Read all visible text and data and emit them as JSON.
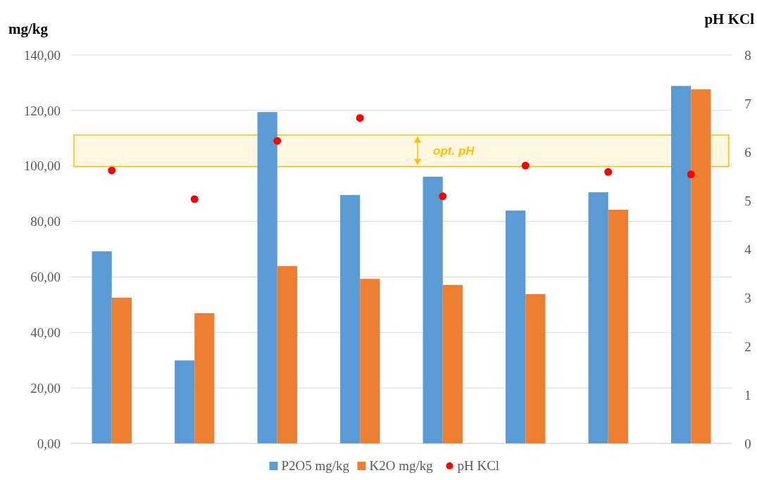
{
  "chart_data": {
    "type": "bar",
    "ylabel": "mg/kg",
    "y2label": "pH KCl",
    "categories": [
      null,
      null,
      null,
      null,
      null,
      null,
      null,
      null
    ],
    "series": [
      {
        "name": "P2O5 mg/kg",
        "color": "#5b9bd5",
        "values": [
          69.2,
          29.9,
          119.4,
          89.5,
          96.1,
          83.9,
          90.5,
          128.8
        ]
      },
      {
        "name": "K2O mg/kg",
        "color": "#ed7d31",
        "values": [
          52.5,
          46.9,
          63.9,
          59.3,
          57.1,
          53.8,
          84.2,
          127.6
        ]
      },
      {
        "name": "pH KCl",
        "type": "scatter",
        "axis": "y2",
        "color": "#ff0000",
        "marker": "circle",
        "values": [
          5.62,
          5.03,
          6.23,
          6.7,
          5.09,
          5.72,
          5.59,
          5.54
        ]
      }
    ],
    "ylim": [
      0,
      140
    ],
    "yticks": [
      {
        "value": 0,
        "label": "0,00"
      },
      {
        "value": 20,
        "label": "20,00"
      },
      {
        "value": 40,
        "label": "40,00"
      },
      {
        "value": 60,
        "label": "60,00"
      },
      {
        "value": 80,
        "label": "80,00"
      },
      {
        "value": 100,
        "label": "100,00"
      },
      {
        "value": 120,
        "label": "120,00"
      },
      {
        "value": 140,
        "label": "140,00"
      }
    ],
    "y2lim": [
      0,
      8
    ],
    "y2ticks": [
      0,
      1,
      2,
      3,
      4,
      5,
      6,
      7,
      8
    ],
    "bands": [
      {
        "axis": "y2",
        "from": 5.7,
        "to": 6.35,
        "label": "opt. pH",
        "color": "#fff2cc"
      }
    ],
    "grid": "y",
    "legend": "bottom"
  }
}
